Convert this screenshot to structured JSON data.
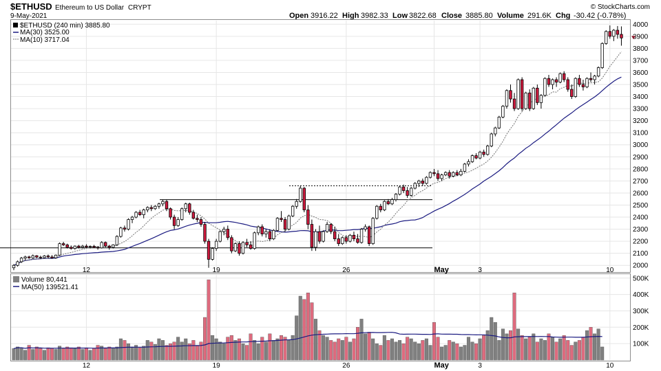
{
  "header": {
    "symbol": "$ETHUSD",
    "name": "Ethereum to US Dollar",
    "exchange": "CRYPT",
    "date": "9-May-2021",
    "brand": "© StockCharts.com",
    "open_label": "Open",
    "open": "3916.22",
    "high_label": "High",
    "high": "3982.33",
    "low_label": "Low",
    "low": "3822.68",
    "close_label": "Close",
    "close": "3885.80",
    "volume_label": "Volume",
    "volume": "291.6K",
    "chg_label": "Chg",
    "chg": "-30.42 (-0.78%)"
  },
  "legend": {
    "price": "$ETHUSD (240 min) 3885.80",
    "ma30": "MA(30) 3525.00",
    "ma10": "MA(10) 3717.04",
    "volume": "Volume 80,441",
    "vma50": "MA(50) 139521.41"
  },
  "colors": {
    "up": "#000000",
    "down": "#d11b3f",
    "ma30": "#1a1a80",
    "ma10": "#707070",
    "vol_up": "#808080",
    "vol_down": "#de6b7e",
    "vbp_up": "#dcdcdc",
    "vbp_down": "#f6d3d8",
    "last_marker": "#8b1a2c"
  },
  "chart_data": {
    "type": "candlestick",
    "timeframe": "240 min",
    "ylim": [
      1950,
      4030
    ],
    "yticks": [
      2000,
      2100,
      2200,
      2300,
      2400,
      2500,
      2600,
      2700,
      2800,
      2900,
      3000,
      3100,
      3200,
      3300,
      3400,
      3500,
      3600,
      3700,
      3800,
      3900,
      4000
    ],
    "volume_ylim": [
      0,
      520000
    ],
    "volume_ticks": [
      {
        "value": 100000,
        "label": "100K"
      },
      {
        "value": 200000,
        "label": "200K"
      },
      {
        "value": 300000,
        "label": "300K"
      },
      {
        "value": 400000,
        "label": "400K"
      },
      {
        "value": 500000,
        "label": "500K"
      }
    ],
    "xticks": [
      {
        "index": 19,
        "label": "12",
        "bold": false
      },
      {
        "index": 53,
        "label": "19",
        "bold": false
      },
      {
        "index": 87,
        "label": "26",
        "bold": false
      },
      {
        "index": 110,
        "label": "May",
        "bold": true
      },
      {
        "index": 122,
        "label": "3",
        "bold": false
      },
      {
        "index": 156,
        "label": "10",
        "bold": false
      }
    ],
    "candles": [
      [
        1980,
        2010,
        1960,
        2000
      ],
      [
        2000,
        2040,
        1990,
        2030
      ],
      [
        2030,
        2070,
        2020,
        2060
      ],
      [
        2060,
        2080,
        2040,
        2070
      ],
      [
        2070,
        2080,
        2055,
        2062
      ],
      [
        2062,
        2090,
        2055,
        2080
      ],
      [
        2080,
        2085,
        2060,
        2068
      ],
      [
        2068,
        2080,
        2055,
        2064
      ],
      [
        2064,
        2085,
        2058,
        2078
      ],
      [
        2078,
        2090,
        2060,
        2070
      ],
      [
        2070,
        2085,
        2055,
        2062
      ],
      [
        2062,
        2090,
        2055,
        2085
      ],
      [
        2085,
        2190,
        2080,
        2180
      ],
      [
        2180,
        2195,
        2160,
        2170
      ],
      [
        2170,
        2180,
        2140,
        2150
      ],
      [
        2150,
        2165,
        2130,
        2140
      ],
      [
        2140,
        2165,
        2130,
        2160
      ],
      [
        2160,
        2170,
        2140,
        2150
      ],
      [
        2150,
        2170,
        2140,
        2160
      ],
      [
        2160,
        2175,
        2145,
        2152
      ],
      [
        2152,
        2165,
        2140,
        2158
      ],
      [
        2158,
        2170,
        2145,
        2150
      ],
      [
        2150,
        2160,
        2130,
        2145
      ],
      [
        2145,
        2200,
        2140,
        2190
      ],
      [
        2190,
        2198,
        2150,
        2160
      ],
      [
        2160,
        2170,
        2130,
        2150
      ],
      [
        2150,
        2175,
        2140,
        2170
      ],
      [
        2170,
        2250,
        2160,
        2240
      ],
      [
        2240,
        2320,
        2230,
        2310
      ],
      [
        2310,
        2330,
        2280,
        2300
      ],
      [
        2300,
        2390,
        2290,
        2380
      ],
      [
        2380,
        2410,
        2350,
        2400
      ],
      [
        2400,
        2450,
        2390,
        2440
      ],
      [
        2440,
        2460,
        2410,
        2420
      ],
      [
        2420,
        2470,
        2390,
        2460
      ],
      [
        2460,
        2490,
        2440,
        2480
      ],
      [
        2480,
        2500,
        2450,
        2470
      ],
      [
        2470,
        2500,
        2460,
        2490
      ],
      [
        2490,
        2520,
        2470,
        2510
      ],
      [
        2510,
        2545,
        2490,
        2530
      ],
      [
        2530,
        2545,
        2450,
        2470
      ],
      [
        2470,
        2480,
        2380,
        2400
      ],
      [
        2400,
        2420,
        2300,
        2330
      ],
      [
        2330,
        2400,
        2320,
        2380
      ],
      [
        2380,
        2480,
        2370,
        2470
      ],
      [
        2470,
        2520,
        2440,
        2510
      ],
      [
        2510,
        2520,
        2420,
        2440
      ],
      [
        2440,
        2460,
        2380,
        2390
      ],
      [
        2390,
        2420,
        2360,
        2380
      ],
      [
        2380,
        2400,
        2320,
        2340
      ],
      [
        2340,
        2360,
        2180,
        2200
      ],
      [
        2200,
        2220,
        1980,
        2050
      ],
      [
        2050,
        2150,
        2040,
        2140
      ],
      [
        2140,
        2220,
        2120,
        2200
      ],
      [
        2200,
        2290,
        2190,
        2280
      ],
      [
        2280,
        2320,
        2250,
        2300
      ],
      [
        2300,
        2330,
        2210,
        2230
      ],
      [
        2230,
        2250,
        2100,
        2120
      ],
      [
        2120,
        2190,
        2110,
        2180
      ],
      [
        2180,
        2200,
        2080,
        2100
      ],
      [
        2100,
        2200,
        2090,
        2190
      ],
      [
        2190,
        2220,
        2150,
        2170
      ],
      [
        2170,
        2200,
        2130,
        2140
      ],
      [
        2140,
        2280,
        2130,
        2270
      ],
      [
        2270,
        2330,
        2250,
        2320
      ],
      [
        2320,
        2340,
        2240,
        2260
      ],
      [
        2260,
        2300,
        2230,
        2280
      ],
      [
        2280,
        2300,
        2200,
        2220
      ],
      [
        2220,
        2300,
        2210,
        2290
      ],
      [
        2290,
        2400,
        2280,
        2390
      ],
      [
        2390,
        2450,
        2360,
        2380
      ],
      [
        2380,
        2400,
        2280,
        2300
      ],
      [
        2300,
        2420,
        2290,
        2410
      ],
      [
        2410,
        2500,
        2400,
        2490
      ],
      [
        2490,
        2550,
        2470,
        2530
      ],
      [
        2530,
        2660,
        2520,
        2640
      ],
      [
        2640,
        2650,
        2440,
        2460
      ],
      [
        2460,
        2500,
        2300,
        2340
      ],
      [
        2340,
        2380,
        2120,
        2150
      ],
      [
        2150,
        2300,
        2120,
        2280
      ],
      [
        2280,
        2330,
        2180,
        2200
      ],
      [
        2200,
        2290,
        2190,
        2280
      ],
      [
        2280,
        2360,
        2270,
        2340
      ],
      [
        2340,
        2350,
        2260,
        2280
      ],
      [
        2280,
        2320,
        2200,
        2220
      ],
      [
        2220,
        2260,
        2160,
        2180
      ],
      [
        2180,
        2240,
        2170,
        2230
      ],
      [
        2230,
        2250,
        2180,
        2200
      ],
      [
        2200,
        2260,
        2190,
        2250
      ],
      [
        2250,
        2280,
        2200,
        2220
      ],
      [
        2220,
        2260,
        2180,
        2190
      ],
      [
        2190,
        2310,
        2180,
        2300
      ],
      [
        2300,
        2340,
        2280,
        2320
      ],
      [
        2320,
        2330,
        2160,
        2180
      ],
      [
        2180,
        2400,
        2170,
        2390
      ],
      [
        2390,
        2500,
        2380,
        2490
      ],
      [
        2490,
        2510,
        2440,
        2460
      ],
      [
        2460,
        2540,
        2450,
        2530
      ],
      [
        2530,
        2550,
        2500,
        2510
      ],
      [
        2510,
        2560,
        2500,
        2545
      ],
      [
        2545,
        2600,
        2530,
        2590
      ],
      [
        2590,
        2660,
        2580,
        2650
      ],
      [
        2650,
        2670,
        2600,
        2620
      ],
      [
        2620,
        2650,
        2560,
        2580
      ],
      [
        2580,
        2650,
        2570,
        2640
      ],
      [
        2640,
        2690,
        2630,
        2680
      ],
      [
        2680,
        2710,
        2650,
        2700
      ],
      [
        2700,
        2720,
        2660,
        2680
      ],
      [
        2680,
        2740,
        2670,
        2730
      ],
      [
        2730,
        2780,
        2720,
        2770
      ],
      [
        2770,
        2800,
        2740,
        2760
      ],
      [
        2760,
        2790,
        2700,
        2720
      ],
      [
        2720,
        2760,
        2700,
        2750
      ],
      [
        2750,
        2780,
        2740,
        2770
      ],
      [
        2770,
        2790,
        2720,
        2740
      ],
      [
        2740,
        2780,
        2730,
        2770
      ],
      [
        2770,
        2790,
        2740,
        2750
      ],
      [
        2750,
        2800,
        2740,
        2780
      ],
      [
        2780,
        2850,
        2770,
        2840
      ],
      [
        2840,
        2880,
        2820,
        2860
      ],
      [
        2860,
        2920,
        2850,
        2910
      ],
      [
        2910,
        2930,
        2880,
        2890
      ],
      [
        2890,
        2950,
        2880,
        2940
      ],
      [
        2940,
        2960,
        2900,
        2920
      ],
      [
        2920,
        3000,
        2910,
        2990
      ],
      [
        2990,
        3100,
        2980,
        3090
      ],
      [
        3090,
        3150,
        3070,
        3140
      ],
      [
        3140,
        3240,
        3130,
        3230
      ],
      [
        3230,
        3330,
        3220,
        3320
      ],
      [
        3320,
        3460,
        3300,
        3450
      ],
      [
        3450,
        3500,
        3350,
        3380
      ],
      [
        3380,
        3430,
        3280,
        3300
      ],
      [
        3300,
        3550,
        3290,
        3540
      ],
      [
        3540,
        3560,
        3280,
        3300
      ],
      [
        3300,
        3440,
        3290,
        3430
      ],
      [
        3430,
        3460,
        3280,
        3300
      ],
      [
        3300,
        3480,
        3290,
        3470
      ],
      [
        3470,
        3500,
        3330,
        3350
      ],
      [
        3350,
        3420,
        3300,
        3410
      ],
      [
        3410,
        3560,
        3400,
        3550
      ],
      [
        3550,
        3580,
        3480,
        3500
      ],
      [
        3500,
        3550,
        3460,
        3540
      ],
      [
        3540,
        3560,
        3480,
        3520
      ],
      [
        3520,
        3600,
        3510,
        3590
      ],
      [
        3590,
        3610,
        3520,
        3540
      ],
      [
        3540,
        3560,
        3440,
        3460
      ],
      [
        3460,
        3500,
        3380,
        3400
      ],
      [
        3400,
        3560,
        3390,
        3550
      ],
      [
        3550,
        3580,
        3480,
        3500
      ],
      [
        3500,
        3540,
        3450,
        3480
      ],
      [
        3480,
        3560,
        3470,
        3550
      ],
      [
        3550,
        3600,
        3520,
        3540
      ],
      [
        3540,
        3580,
        3500,
        3570
      ],
      [
        3570,
        3650,
        3560,
        3640
      ],
      [
        3640,
        3850,
        3630,
        3840
      ],
      [
        3840,
        3950,
        3830,
        3940
      ],
      [
        3940,
        3990,
        3880,
        3900
      ],
      [
        3900,
        3960,
        3860,
        3950
      ],
      [
        3950,
        3985,
        3880,
        3916
      ],
      [
        3916,
        3982,
        3822,
        3886
      ]
    ],
    "volume": [
      70000,
      80000,
      75000,
      60000,
      90000,
      65000,
      80000,
      70000,
      60000,
      75000,
      70000,
      65000,
      85000,
      70000,
      80000,
      75000,
      70000,
      80000,
      65000,
      75000,
      60000,
      70000,
      90000,
      85000,
      70000,
      80000,
      75000,
      80000,
      130000,
      120000,
      100000,
      80000,
      90000,
      75000,
      85000,
      120000,
      110000,
      95000,
      130000,
      120000,
      90000,
      100000,
      110000,
      140000,
      110000,
      130000,
      100000,
      120000,
      90000,
      110000,
      260000,
      490000,
      150000,
      130000,
      110000,
      100000,
      140000,
      150000,
      120000,
      130000,
      100000,
      90000,
      160000,
      120000,
      100000,
      140000,
      110000,
      160000,
      120000,
      130000,
      150000,
      140000,
      120000,
      150000,
      270000,
      390000,
      370000,
      410000,
      350000,
      250000,
      180000,
      150000,
      140000,
      120000,
      110000,
      130000,
      120000,
      140000,
      110000,
      130000,
      200000,
      250000,
      160000,
      170000,
      130000,
      100000,
      90000,
      150000,
      120000,
      130000,
      110000,
      120000,
      100000,
      140000,
      130000,
      110000,
      100000,
      120000,
      130000,
      90000,
      230000,
      140000,
      80000,
      90000,
      120000,
      110000,
      100000,
      80000,
      90000,
      140000,
      110000,
      100000,
      130000,
      150000,
      180000,
      260000,
      230000,
      120000,
      190000,
      160000,
      180000,
      410000,
      190000,
      150000,
      130000,
      140000,
      160000,
      110000,
      130000,
      120000,
      160000,
      140000,
      110000,
      130000,
      150000,
      120000,
      90000,
      110000,
      120000,
      140000,
      180000,
      200000,
      160000,
      190000,
      80000
    ]
  }
}
